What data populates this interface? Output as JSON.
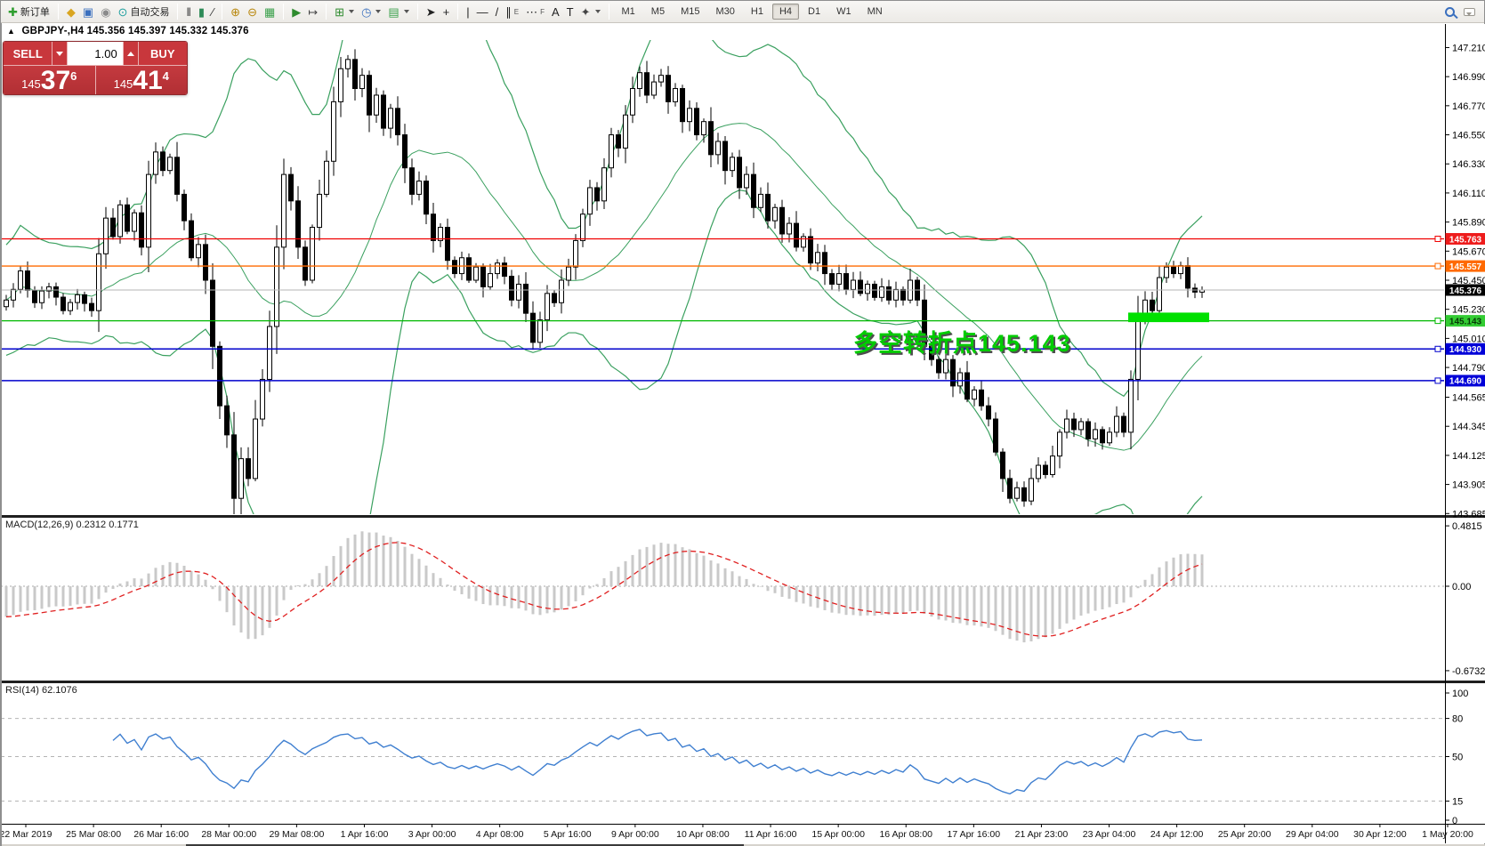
{
  "toolbar": {
    "groups": [
      {
        "items": [
          {
            "name": "new-order",
            "glyph": "✚",
            "color": "#2e9e2e",
            "label": "新订单"
          }
        ]
      },
      {
        "items": [
          {
            "name": "profiles",
            "glyph": "◆",
            "color": "#d9a521"
          },
          {
            "name": "new-window",
            "glyph": "▣",
            "color": "#3a6fbe"
          },
          {
            "name": "signal",
            "glyph": "◉",
            "color": "#8b8b8b"
          },
          {
            "name": "auto-trading",
            "glyph": "⊙",
            "color": "#1d9e9e",
            "label": "自动交易"
          }
        ]
      },
      {
        "items": [
          {
            "name": "bar-chart",
            "glyph": "‖",
            "color": "#333333"
          },
          {
            "name": "candle-chart",
            "glyph": "▮",
            "color": "#2e8b57"
          },
          {
            "name": "line-chart",
            "glyph": "∕",
            "color": "#333333"
          }
        ]
      },
      {
        "items": [
          {
            "name": "zoom-in",
            "glyph": "⊕",
            "color": "#b8860b"
          },
          {
            "name": "zoom-out",
            "glyph": "⊖",
            "color": "#b8860b"
          },
          {
            "name": "tile-windows",
            "glyph": "▦",
            "color": "#3aa04a"
          }
        ]
      },
      {
        "items": [
          {
            "name": "auto-scroll",
            "glyph": "▶",
            "color": "#2e8b2e"
          },
          {
            "name": "chart-shift",
            "glyph": "↦",
            "color": "#444444"
          }
        ]
      },
      {
        "items": [
          {
            "name": "new-chart",
            "glyph": "⊞",
            "color": "#2e8b2e",
            "dropdown": true
          },
          {
            "name": "periods",
            "glyph": "◷",
            "color": "#3a6fbe",
            "dropdown": true
          },
          {
            "name": "templates",
            "glyph": "▤",
            "color": "#3aa04a",
            "dropdown": true
          }
        ]
      },
      {
        "items": [
          {
            "name": "cursor",
            "glyph": "➤",
            "color": "#222222"
          },
          {
            "name": "crosshair",
            "glyph": "+",
            "color": "#222222"
          }
        ]
      },
      {
        "items": [
          {
            "name": "vertical-line",
            "glyph": "|",
            "color": "#222222"
          },
          {
            "name": "horizontal-line",
            "glyph": "—",
            "color": "#222222"
          },
          {
            "name": "trend-line",
            "glyph": "/",
            "color": "#222222"
          },
          {
            "name": "channel",
            "glyph": "∥",
            "sub": "E",
            "color": "#222222"
          },
          {
            "name": "fibonacci",
            "glyph": "⋯",
            "sub": "F",
            "color": "#222222"
          },
          {
            "name": "text",
            "glyph": "A",
            "color": "#222222"
          },
          {
            "name": "text-label",
            "glyph": "T",
            "color": "#222222"
          },
          {
            "name": "shapes",
            "glyph": "✦",
            "color": "#444444",
            "dropdown": true
          }
        ]
      }
    ],
    "timeframes": [
      "M1",
      "M5",
      "M15",
      "M30",
      "H1",
      "H4",
      "D1",
      "W1",
      "MN"
    ],
    "active_timeframe": "H4"
  },
  "symbol_bar": {
    "collapse_glyph": "▲",
    "symbol": "GBPJPY-,H4",
    "quotes": "145.356 145.397 145.332 145.376"
  },
  "quote_panel": {
    "sell_label": "SELL",
    "buy_label": "BUY",
    "volume": "1.00",
    "sell": {
      "prefix": "145",
      "digits": "37",
      "pip": "6"
    },
    "buy": {
      "prefix": "145",
      "digits": "41",
      "pip": "4"
    }
  },
  "chart_data": {
    "type": "candlestick",
    "symbol": "GBPJPY",
    "period": "H4",
    "ohlc_display": {
      "open": "145.356",
      "high": "145.397",
      "low": "145.332",
      "close": "145.376"
    },
    "y_ticks": [
      "147.210",
      "146.990",
      "146.770",
      "146.550",
      "146.330",
      "146.110",
      "145.890",
      "145.670",
      "145.450",
      "145.230",
      "145.010",
      "144.790",
      "144.565",
      "144.345",
      "144.125",
      "143.905",
      "143.685"
    ],
    "time_labels": [
      "22 Mar 2019",
      "25 Mar 08:00",
      "26 Mar 16:00",
      "28 Mar 00:00",
      "29 Mar 08:00",
      "1 Apr 16:00",
      "3 Apr 00:00",
      "4 Apr 08:00",
      "5 Apr 16:00",
      "9 Apr 00:00",
      "10 Apr 08:00",
      "11 Apr 16:00",
      "15 Apr 00:00",
      "16 Apr 08:00",
      "17 Apr 16:00",
      "21 Apr 23:00",
      "23 Apr 04:00",
      "24 Apr 12:00",
      "25 Apr 20:00",
      "29 Apr 04:00",
      "30 Apr 12:00",
      "1 May 20:00"
    ],
    "price_lines": [
      {
        "price": 145.763,
        "label": "145.763",
        "color": "#f00000",
        "label_bg": "#ee1c1c",
        "label_fg": "#ffffff",
        "width": 1.2
      },
      {
        "price": 145.557,
        "label": "145.557",
        "color": "#ff6a00",
        "label_bg": "#ff6a00",
        "label_fg": "#ffffff",
        "width": 1.4
      },
      {
        "price": 145.143,
        "label": "145.143",
        "color": "#00b800",
        "label_bg": "#33cc33",
        "label_fg": "#073807",
        "width": 1.2
      },
      {
        "price": 144.93,
        "label": "144.930",
        "color": "#0000cc",
        "label_bg": "#0000d8",
        "label_fg": "#ffffff",
        "width": 1.5
      },
      {
        "price": 144.69,
        "label": "144.690",
        "color": "#0000cc",
        "label_bg": "#0000d8",
        "label_fg": "#ffffff",
        "width": 1.5
      }
    ],
    "current_price": {
      "price": 145.376,
      "label": "145.376",
      "line_color": "#b4b4b4",
      "label_bg": "#000000",
      "label_fg": "#ffffff"
    },
    "highlight_zone": {
      "start_index": 158,
      "end_index": 169,
      "price_top": 145.205,
      "price_bottom": 145.133,
      "color": "#00e000"
    },
    "annotation": {
      "text": "多空转折点145.143",
      "color": "#00cc00"
    },
    "candle_count": 169,
    "price_waypoints": [
      [
        0,
        145.3
      ],
      [
        2,
        145.52
      ],
      [
        4,
        145.28
      ],
      [
        6,
        145.4
      ],
      [
        8,
        145.22
      ],
      [
        10,
        145.34
      ],
      [
        12,
        145.22
      ],
      [
        13,
        145.65
      ],
      [
        14,
        145.92
      ],
      [
        15,
        145.78
      ],
      [
        16,
        146.02
      ],
      [
        17,
        145.82
      ],
      [
        18,
        145.96
      ],
      [
        19,
        145.7
      ],
      [
        20,
        146.25
      ],
      [
        21,
        146.42
      ],
      [
        22,
        146.28
      ],
      [
        23,
        146.38
      ],
      [
        24,
        146.1
      ],
      [
        25,
        145.9
      ],
      [
        26,
        145.62
      ],
      [
        27,
        145.72
      ],
      [
        28,
        145.45
      ],
      [
        29,
        144.95
      ],
      [
        30,
        144.5
      ],
      [
        31,
        144.28
      ],
      [
        32,
        143.8
      ],
      [
        33,
        144.1
      ],
      [
        34,
        143.95
      ],
      [
        35,
        144.4
      ],
      [
        36,
        144.7
      ],
      [
        37,
        145.1
      ],
      [
        38,
        145.7
      ],
      [
        39,
        146.25
      ],
      [
        40,
        146.05
      ],
      [
        41,
        145.7
      ],
      [
        42,
        145.45
      ],
      [
        43,
        145.85
      ],
      [
        44,
        146.1
      ],
      [
        45,
        146.35
      ],
      [
        46,
        146.8
      ],
      [
        47,
        147.05
      ],
      [
        48,
        147.12
      ],
      [
        49,
        146.9
      ],
      [
        50,
        147.0
      ],
      [
        51,
        146.7
      ],
      [
        52,
        146.85
      ],
      [
        53,
        146.6
      ],
      [
        54,
        146.75
      ],
      [
        55,
        146.55
      ],
      [
        56,
        146.3
      ],
      [
        57,
        146.1
      ],
      [
        58,
        146.2
      ],
      [
        59,
        145.95
      ],
      [
        60,
        145.75
      ],
      [
        61,
        145.85
      ],
      [
        62,
        145.6
      ],
      [
        63,
        145.5
      ],
      [
        64,
        145.62
      ],
      [
        65,
        145.45
      ],
      [
        66,
        145.55
      ],
      [
        67,
        145.4
      ],
      [
        68,
        145.5
      ],
      [
        69,
        145.58
      ],
      [
        70,
        145.48
      ],
      [
        71,
        145.3
      ],
      [
        72,
        145.42
      ],
      [
        73,
        145.2
      ],
      [
        74,
        144.98
      ],
      [
        75,
        145.15
      ],
      [
        76,
        145.35
      ],
      [
        77,
        145.28
      ],
      [
        78,
        145.45
      ],
      [
        79,
        145.55
      ],
      [
        80,
        145.75
      ],
      [
        81,
        145.95
      ],
      [
        82,
        146.15
      ],
      [
        83,
        146.05
      ],
      [
        84,
        146.3
      ],
      [
        85,
        146.55
      ],
      [
        86,
        146.45
      ],
      [
        87,
        146.7
      ],
      [
        88,
        146.9
      ],
      [
        89,
        147.02
      ],
      [
        90,
        146.85
      ],
      [
        91,
        146.95
      ],
      [
        92,
        147.0
      ],
      [
        93,
        146.8
      ],
      [
        94,
        146.9
      ],
      [
        95,
        146.65
      ],
      [
        96,
        146.75
      ],
      [
        97,
        146.55
      ],
      [
        98,
        146.65
      ],
      [
        99,
        146.4
      ],
      [
        100,
        146.5
      ],
      [
        101,
        146.28
      ],
      [
        102,
        146.38
      ],
      [
        103,
        146.15
      ],
      [
        104,
        146.25
      ],
      [
        105,
        146.0
      ],
      [
        106,
        146.1
      ],
      [
        107,
        145.9
      ],
      [
        108,
        146.0
      ],
      [
        109,
        145.8
      ],
      [
        110,
        145.88
      ],
      [
        111,
        145.7
      ],
      [
        112,
        145.78
      ],
      [
        113,
        145.58
      ],
      [
        114,
        145.66
      ],
      [
        115,
        145.5
      ],
      [
        116,
        145.42
      ],
      [
        117,
        145.5
      ],
      [
        118,
        145.38
      ],
      [
        119,
        145.45
      ],
      [
        120,
        145.35
      ],
      [
        121,
        145.42
      ],
      [
        122,
        145.32
      ],
      [
        123,
        145.4
      ],
      [
        124,
        145.3
      ],
      [
        125,
        145.38
      ],
      [
        126,
        145.3
      ],
      [
        127,
        145.45
      ],
      [
        128,
        145.3
      ],
      [
        129,
        144.95
      ],
      [
        130,
        144.85
      ],
      [
        131,
        144.75
      ],
      [
        132,
        144.85
      ],
      [
        133,
        144.65
      ],
      [
        134,
        144.75
      ],
      [
        135,
        144.55
      ],
      [
        136,
        144.62
      ],
      [
        137,
        144.5
      ],
      [
        138,
        144.4
      ],
      [
        139,
        144.15
      ],
      [
        140,
        143.95
      ],
      [
        141,
        143.8
      ],
      [
        142,
        143.88
      ],
      [
        143,
        143.78
      ],
      [
        144,
        143.95
      ],
      [
        145,
        144.05
      ],
      [
        146,
        143.98
      ],
      [
        147,
        144.12
      ],
      [
        148,
        144.3
      ],
      [
        149,
        144.4
      ],
      [
        150,
        144.32
      ],
      [
        151,
        144.38
      ],
      [
        152,
        144.25
      ],
      [
        153,
        144.32
      ],
      [
        154,
        144.22
      ],
      [
        155,
        144.3
      ],
      [
        156,
        144.42
      ],
      [
        157,
        144.3
      ],
      [
        158,
        144.7
      ],
      [
        159,
        145.18
      ],
      [
        160,
        145.3
      ],
      [
        161,
        145.22
      ],
      [
        162,
        145.47
      ],
      [
        163,
        145.55
      ],
      [
        164,
        145.5
      ],
      [
        165,
        145.56
      ],
      [
        166,
        145.39
      ],
      [
        167,
        145.36
      ],
      [
        168,
        145.376
      ]
    ],
    "bollinger": {
      "period": 20,
      "deviation": 2,
      "color": "#3aa05f"
    },
    "macd": {
      "name": "MACD(12,26,9)",
      "value": "0.2312",
      "signal": "0.1771",
      "axis_ticks": [
        "0.4815",
        "0.00",
        "-0.6732"
      ],
      "histogram_color": "#c9c9c9",
      "signal_color": "#e02020"
    },
    "rsi": {
      "name": "RSI(14)",
      "value": "62.1076",
      "levels": [
        80,
        50,
        15
      ],
      "axis_ticks": [
        "100",
        "80",
        "50",
        "15",
        "0"
      ],
      "color": "#3f7fd0"
    }
  }
}
